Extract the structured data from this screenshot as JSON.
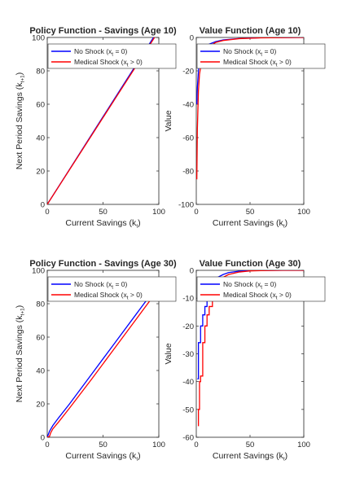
{
  "chart_data": [
    {
      "type": "line",
      "title": "Policy Function - Savings (Age 10)",
      "xlabel": "Current Savings (k_t)",
      "ylabel": "Next Period Savings (k_{t+1})",
      "xlim": [
        0,
        100
      ],
      "ylim": [
        0,
        100
      ],
      "xticks": [
        "0",
        "50",
        "100"
      ],
      "yticks": [
        "0",
        "20",
        "40",
        "60",
        "80",
        "100"
      ],
      "grid": false,
      "legend": "top-left",
      "series": [
        {
          "name": "No Shock (x_t = 0)",
          "color": "#0000ff",
          "x": [
            0,
            10,
            20,
            40,
            60,
            80,
            90,
            100
          ],
          "y": [
            0,
            10.5,
            21,
            42,
            63,
            84,
            94.5,
            105
          ]
        },
        {
          "name": "Medical Shock (x_t > 0)",
          "color": "#ff0000",
          "x": [
            0,
            10,
            20,
            40,
            60,
            80,
            90,
            100
          ],
          "y": [
            0,
            10.4,
            20.8,
            41.6,
            62.4,
            83.2,
            93.6,
            104
          ]
        }
      ]
    },
    {
      "type": "line",
      "title": "Value Function (Age 10)",
      "xlabel": "Current Savings (k_t)",
      "ylabel": "Value",
      "xlim": [
        0,
        100
      ],
      "ylim": [
        -100,
        0
      ],
      "xticks": [
        "0",
        "50",
        "100"
      ],
      "yticks": [
        "-100",
        "-80",
        "-60",
        "-40",
        "-20",
        "0"
      ],
      "grid": false,
      "legend": "top-left",
      "series": [
        {
          "name": "No Shock (x_t = 0)",
          "color": "#0000ff",
          "x": [
            0.5,
            1,
            2,
            3,
            5,
            8,
            12,
            18,
            25,
            40,
            60,
            80,
            100
          ],
          "y": [
            -40,
            -30,
            -20,
            -14,
            -9,
            -6,
            -4,
            -2.5,
            -1.5,
            -0.6,
            -0.2,
            -0.1,
            0
          ]
        },
        {
          "name": "Medical Shock (x_t > 0)",
          "color": "#ff0000",
          "x": [
            0.5,
            1,
            2,
            3,
            5,
            8,
            12,
            18,
            25,
            40,
            60,
            80,
            100
          ],
          "y": [
            -85,
            -55,
            -32,
            -22,
            -14,
            -8.5,
            -5.5,
            -3,
            -1.8,
            -0.7,
            -0.25,
            -0.1,
            0
          ]
        }
      ]
    },
    {
      "type": "line",
      "title": "Policy Function - Savings (Age 30)",
      "xlabel": "Current Savings (k_t)",
      "ylabel": "Next Period Savings (k_{t+1})",
      "xlim": [
        0,
        100
      ],
      "ylim": [
        0,
        100
      ],
      "xticks": [
        "0",
        "50",
        "100"
      ],
      "yticks": [
        "0",
        "20",
        "40",
        "60",
        "80",
        "100"
      ],
      "grid": false,
      "legend": "top-left",
      "series": [
        {
          "name": "No Shock (x_t = 0)",
          "color": "#0000ff",
          "x": [
            0,
            2,
            5,
            10,
            20,
            40,
            60,
            80,
            100
          ],
          "y": [
            0,
            3.5,
            7,
            11.5,
            20,
            38,
            56,
            74,
            92
          ]
        },
        {
          "name": "Medical Shock (x_t > 0)",
          "color": "#ff0000",
          "x": [
            0,
            2,
            3,
            5,
            10,
            20,
            40,
            60,
            80,
            100
          ],
          "y": [
            0,
            0.5,
            2.5,
            5,
            9,
            17.5,
            35,
            53,
            71,
            89
          ]
        }
      ]
    },
    {
      "type": "line",
      "title": "Value Function (Age 30)",
      "xlabel": "Current Savings (k_t)",
      "ylabel": "Value",
      "xlim": [
        0,
        100
      ],
      "ylim": [
        -60,
        0
      ],
      "xticks": [
        "0",
        "50",
        "100"
      ],
      "yticks": [
        "-60",
        "-50",
        "-40",
        "-30",
        "-20",
        "-10",
        "0"
      ],
      "grid": false,
      "legend": "top-left",
      "series": [
        {
          "name": "No Shock (x_t = 0)",
          "color": "#0000ff",
          "x": [
            1,
            2,
            2,
            4,
            4,
            6,
            6,
            8,
            8,
            10,
            10,
            12,
            12,
            15,
            20,
            25,
            30,
            40,
            50,
            60,
            80,
            100
          ],
          "y": [
            -39,
            -39,
            -26,
            -26,
            -20,
            -20,
            -16,
            -16,
            -13,
            -13,
            -10,
            -10,
            -7,
            -4.5,
            -2.5,
            -1.5,
            -0.8,
            -0.3,
            -0.1,
            -0.05,
            0,
            0
          ]
        },
        {
          "name": "Medical Shock (x_t > 0)",
          "color": "#ff0000",
          "x": [
            2,
            2,
            3,
            3,
            4,
            4,
            6,
            6,
            8,
            8,
            10,
            10,
            12,
            12,
            15,
            15,
            20,
            25,
            30,
            40,
            50,
            60,
            80,
            100
          ],
          "y": [
            -56,
            -50,
            -50,
            -40,
            -40,
            -38,
            -38,
            -26,
            -26,
            -20,
            -20,
            -16,
            -16,
            -13,
            -13,
            -8,
            -4.5,
            -2.5,
            -1.5,
            -0.6,
            -0.2,
            -0.1,
            0,
            0
          ]
        }
      ]
    }
  ]
}
